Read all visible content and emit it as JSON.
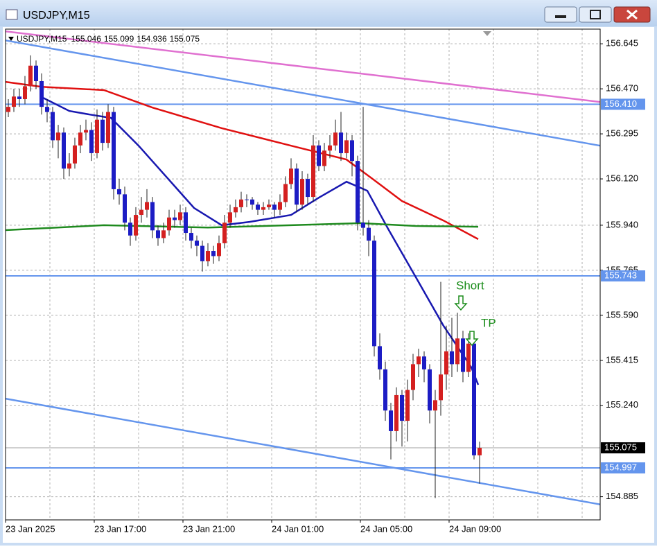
{
  "window_title": "USDJPY,M15",
  "chart_data": {
    "type": "candlestick",
    "symbol": "USDJPY,M15",
    "up_color": "#d42020",
    "down_color": "#1c1cc4",
    "wick_color": "#202020",
    "ohlc": [
      [
        156.38,
        156.43,
        156.36,
        156.4
      ],
      [
        156.4,
        156.47,
        156.38,
        156.44
      ],
      [
        156.44,
        156.47,
        156.4,
        156.43
      ],
      [
        156.43,
        156.52,
        156.41,
        156.48
      ],
      [
        156.48,
        156.6,
        156.46,
        156.56
      ],
      [
        156.56,
        156.58,
        156.47,
        156.5
      ],
      [
        156.5,
        156.53,
        156.37,
        156.4
      ],
      [
        156.4,
        156.43,
        156.34,
        156.38
      ],
      [
        156.38,
        156.4,
        156.24,
        156.27
      ],
      [
        156.27,
        156.33,
        156.2,
        156.3
      ],
      [
        156.3,
        156.32,
        156.12,
        156.16
      ],
      [
        156.16,
        156.22,
        156.13,
        156.18
      ],
      [
        156.18,
        156.28,
        156.16,
        156.25
      ],
      [
        156.25,
        156.33,
        156.22,
        156.3
      ],
      [
        156.3,
        156.35,
        156.27,
        156.31
      ],
      [
        156.31,
        156.34,
        156.19,
        156.22
      ],
      [
        156.22,
        156.39,
        156.2,
        156.35
      ],
      [
        156.35,
        156.38,
        156.23,
        156.26
      ],
      [
        156.26,
        156.41,
        156.24,
        156.38
      ],
      [
        156.38,
        156.4,
        156.04,
        156.08
      ],
      [
        156.08,
        156.12,
        156.02,
        156.06
      ],
      [
        156.06,
        156.09,
        155.92,
        155.95
      ],
      [
        155.95,
        155.97,
        155.86,
        155.9
      ],
      [
        155.9,
        156.01,
        155.88,
        155.98
      ],
      [
        155.98,
        156.05,
        155.95,
        156.0
      ],
      [
        156.0,
        156.08,
        155.97,
        156.03
      ],
      [
        156.03,
        156.05,
        155.89,
        155.92
      ],
      [
        155.92,
        155.94,
        155.86,
        155.89
      ],
      [
        155.89,
        155.95,
        155.87,
        155.92
      ],
      [
        155.92,
        156.0,
        155.9,
        155.97
      ],
      [
        155.97,
        156.0,
        155.93,
        155.96
      ],
      [
        155.96,
        156.02,
        155.94,
        155.99
      ],
      [
        155.99,
        156.01,
        155.88,
        155.91
      ],
      [
        155.91,
        155.93,
        155.85,
        155.88
      ],
      [
        155.88,
        155.9,
        155.82,
        155.86
      ],
      [
        155.86,
        155.88,
        155.76,
        155.8
      ],
      [
        155.8,
        155.87,
        155.78,
        155.84
      ],
      [
        155.84,
        155.86,
        155.79,
        155.82
      ],
      [
        155.82,
        155.9,
        155.8,
        155.87
      ],
      [
        155.87,
        155.98,
        155.85,
        155.95
      ],
      [
        155.95,
        156.02,
        155.93,
        155.99
      ],
      [
        155.99,
        156.04,
        155.97,
        156.01
      ],
      [
        156.01,
        156.07,
        155.99,
        156.04
      ],
      [
        156.04,
        156.06,
        156.01,
        156.04
      ],
      [
        156.04,
        156.05,
        156.0,
        156.02
      ],
      [
        156.02,
        156.03,
        155.98,
        156.0
      ],
      [
        156.0,
        156.03,
        155.98,
        156.01
      ],
      [
        156.01,
        156.04,
        156.0,
        156.02
      ],
      [
        156.02,
        156.03,
        155.97,
        156.0
      ],
      [
        156.0,
        156.06,
        155.98,
        156.03
      ],
      [
        156.03,
        156.13,
        156.01,
        156.1
      ],
      [
        156.1,
        156.2,
        156.08,
        156.16
      ],
      [
        156.16,
        156.18,
        155.99,
        156.02
      ],
      [
        156.02,
        156.15,
        156.0,
        156.12
      ],
      [
        156.12,
        156.14,
        156.02,
        156.05
      ],
      [
        156.05,
        156.29,
        156.03,
        156.25
      ],
      [
        156.25,
        156.27,
        156.15,
        156.17
      ],
      [
        156.17,
        156.26,
        156.15,
        156.23
      ],
      [
        156.23,
        156.29,
        156.2,
        156.25
      ],
      [
        156.25,
        156.35,
        156.23,
        156.3
      ],
      [
        156.3,
        156.38,
        156.19,
        156.22
      ],
      [
        156.22,
        156.3,
        156.2,
        156.27
      ],
      [
        156.27,
        156.29,
        156.13,
        156.19
      ],
      [
        156.19,
        156.21,
        155.92,
        155.95
      ],
      [
        155.95,
        156.4,
        155.9,
        155.93
      ],
      [
        155.93,
        155.96,
        155.82,
        155.88
      ],
      [
        155.88,
        155.9,
        155.43,
        155.47
      ],
      [
        155.47,
        155.52,
        155.34,
        155.38
      ],
      [
        155.38,
        155.41,
        155.18,
        155.22
      ],
      [
        155.22,
        155.25,
        155.03,
        155.14
      ],
      [
        155.14,
        155.31,
        155.1,
        155.28
      ],
      [
        155.28,
        155.3,
        155.08,
        155.18
      ],
      [
        155.18,
        155.34,
        155.1,
        155.3
      ],
      [
        155.3,
        155.44,
        155.26,
        155.4
      ],
      [
        155.4,
        155.46,
        155.35,
        155.43
      ],
      [
        155.43,
        155.45,
        155.33,
        155.38
      ],
      [
        155.38,
        155.4,
        155.17,
        155.22
      ],
      [
        155.22,
        155.3,
        154.88,
        155.26
      ],
      [
        155.26,
        155.72,
        155.2,
        155.36
      ],
      [
        155.36,
        155.55,
        155.3,
        155.45
      ],
      [
        155.45,
        155.58,
        155.35,
        155.4
      ],
      [
        155.4,
        155.6,
        155.37,
        155.5
      ],
      [
        155.5,
        155.53,
        155.33,
        155.37
      ],
      [
        155.37,
        155.52,
        155.35,
        155.48
      ],
      [
        155.48,
        155.5,
        155.03,
        155.046
      ],
      [
        155.046,
        155.099,
        154.936,
        155.075
      ]
    ],
    "xlim": [
      -0.5,
      106.75
    ],
    "ylim": [
      154.795,
      156.702
    ],
    "xticks": [
      {
        "value": 0,
        "label": "23 Jan 2025"
      },
      {
        "value": 16,
        "label": "23 Jan 17:00"
      },
      {
        "value": 32,
        "label": "23 Jan 21:00"
      },
      {
        "value": 48,
        "label": "24 Jan 01:00"
      },
      {
        "value": 64,
        "label": "24 Jan 05:00"
      },
      {
        "value": 80,
        "label": "24 Jan 09:00"
      }
    ],
    "yticks": [
      {
        "value": 156.645,
        "label": "156.645"
      },
      {
        "value": 156.47,
        "label": "156.470"
      },
      {
        "value": 156.295,
        "label": "156.295"
      },
      {
        "value": 156.12,
        "label": "156.120"
      },
      {
        "value": 155.94,
        "label": "155.940"
      },
      {
        "value": 155.765,
        "label": "155.765"
      },
      {
        "value": 155.59,
        "label": "155.590"
      },
      {
        "value": 155.415,
        "label": "155.415"
      },
      {
        "value": 155.24,
        "label": "155.240"
      },
      {
        "value": 154.885,
        "label": "154.885"
      }
    ],
    "grid": true,
    "lines": [
      {
        "color": "#e070d0",
        "x": [
          -0.5,
          106.75
        ],
        "values": [
          156.693,
          156.419
        ]
      },
      {
        "color": "#6495ed",
        "x": [
          -0.5,
          106.75
        ],
        "values": [
          156.658,
          156.249
        ]
      },
      {
        "color": "#6495ed",
        "x": [
          -0.5,
          106.75
        ],
        "values": [
          155.266,
          154.855
        ]
      },
      {
        "color": "#e01010",
        "x": [
          -0.5,
          6,
          17.25,
          26,
          38.5,
          51,
          61,
          66,
          71,
          78.5,
          84.75
        ],
        "values": [
          156.497,
          156.478,
          156.465,
          156.397,
          156.317,
          156.249,
          156.195,
          156.115,
          156.034,
          155.958,
          155.886
        ]
      },
      {
        "color": "#1818b0",
        "x": [
          6,
          11,
          14.75,
          18.5,
          23.5,
          28.5,
          33.5,
          38.5,
          43.5,
          51,
          56,
          61,
          64.75,
          68.5,
          73.5,
          78.5,
          83.5,
          84.75
        ],
        "values": [
          156.438,
          156.384,
          156.37,
          156.357,
          156.249,
          156.128,
          156.007,
          155.94,
          155.953,
          155.98,
          156.047,
          156.109,
          156.074,
          155.926,
          155.738,
          155.549,
          155.388,
          155.32
        ]
      },
      {
        "color": "#1e8a1e",
        "x": [
          -0.5,
          17.25,
          36,
          51,
          63.5,
          73.5,
          84.75
        ],
        "values": [
          155.921,
          155.94,
          155.931,
          155.94,
          155.948,
          155.937,
          155.934
        ]
      }
    ],
    "hlines": [
      {
        "value": 156.41,
        "label": "156.410",
        "color": "#6495ed"
      },
      {
        "value": 155.743,
        "label": "155.743",
        "color": "#6495ed"
      },
      {
        "value": 154.997,
        "label": "154.997",
        "color": "#6495ed"
      }
    ],
    "annotations": [
      "Short",
      "TP"
    ],
    "annotation_color": "#1a8c1a"
  }
}
